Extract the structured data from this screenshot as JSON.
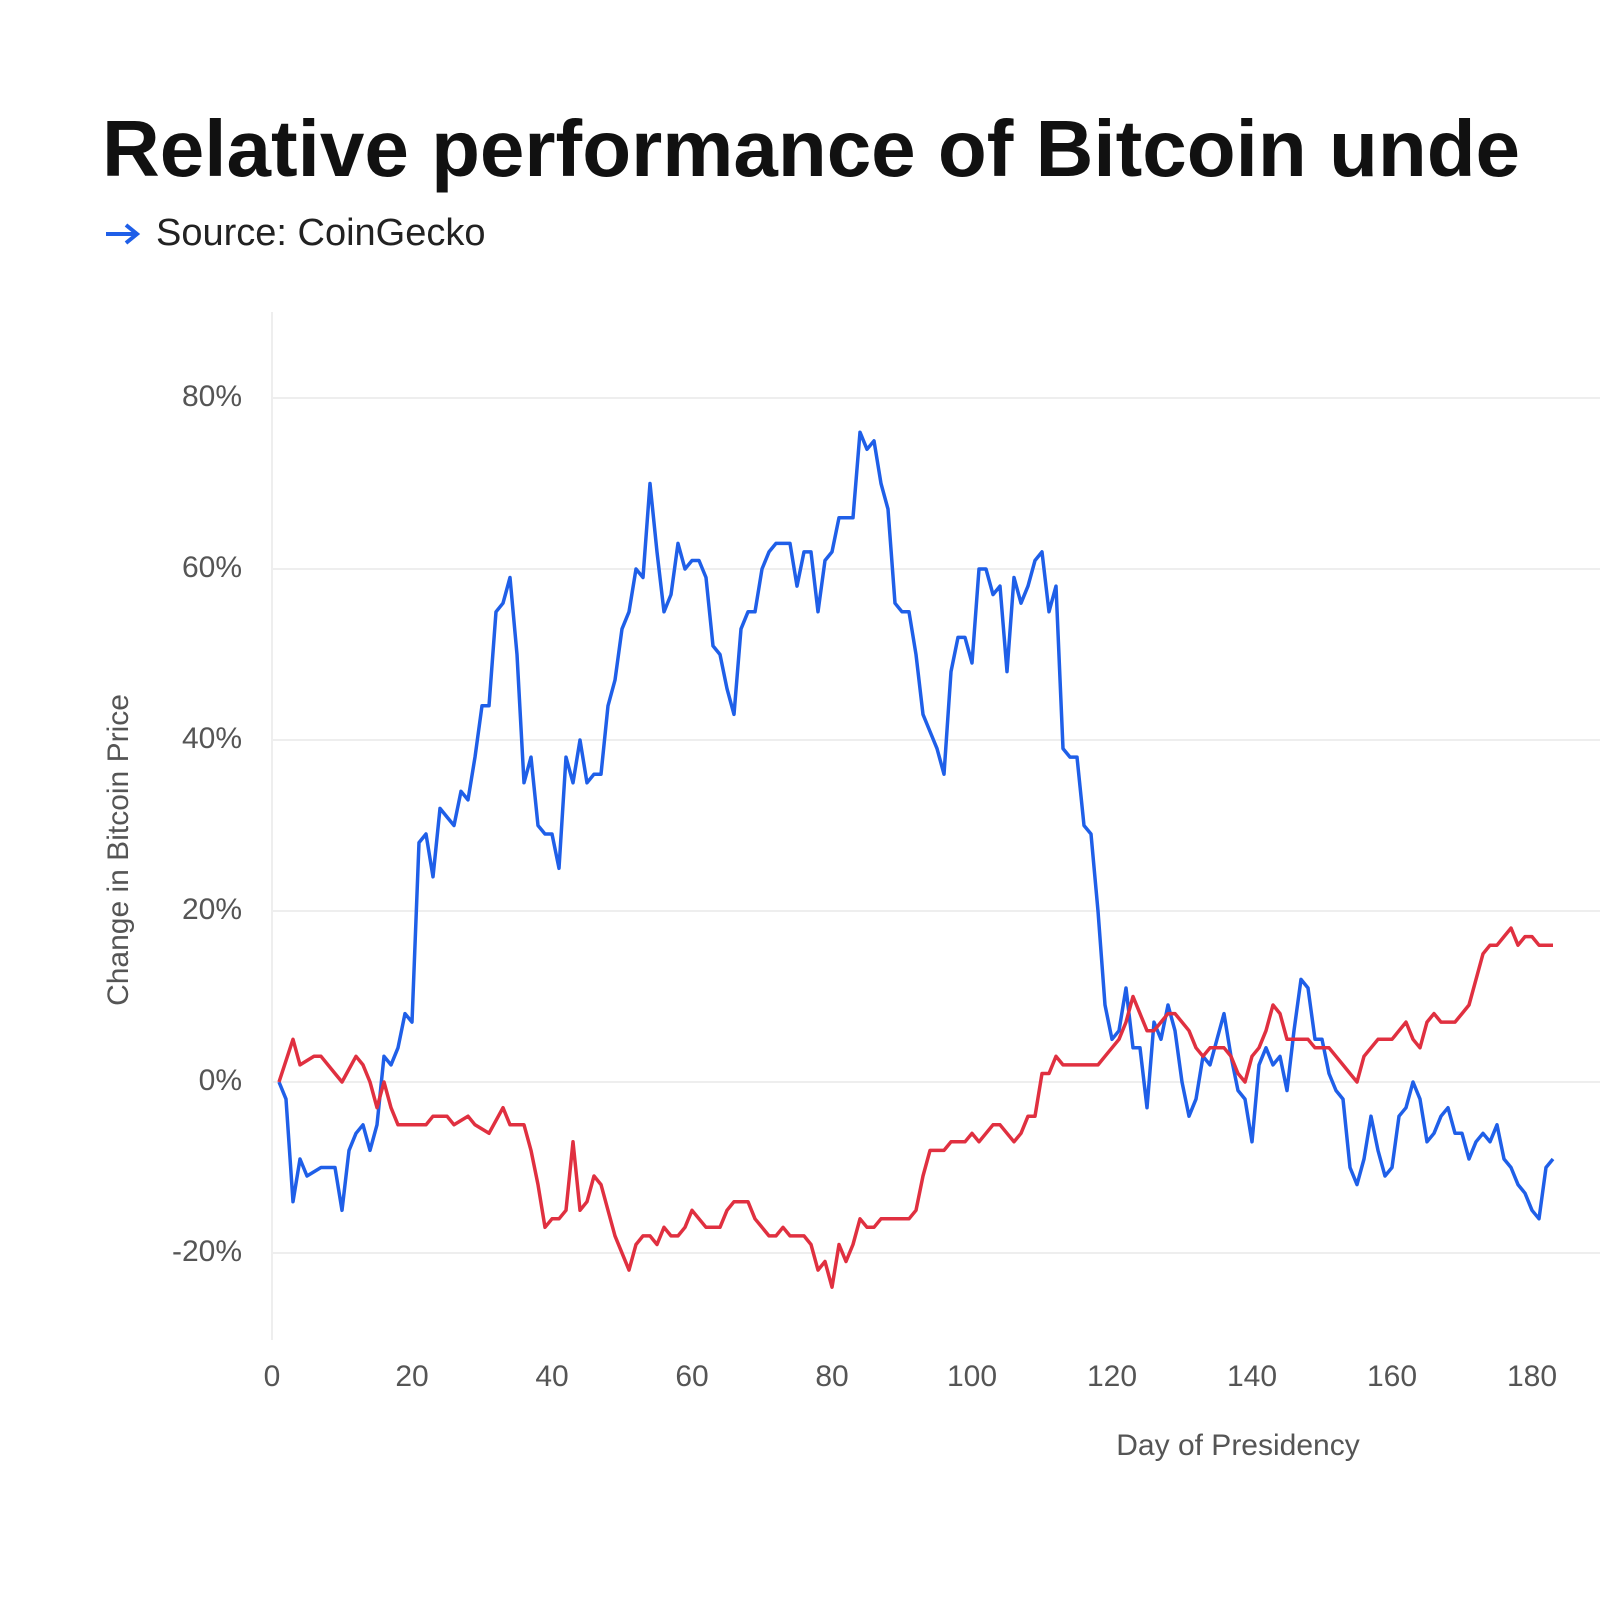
{
  "chart_data": {
    "type": "line",
    "title": "Relative performance of Bitcoin unde",
    "subtitle": "Source: CoinGecko",
    "x_label": "Day of Presidency",
    "y_label": "Change in Bitcoin Price",
    "xlim": [
      0,
      189
    ],
    "ylim": [
      -30,
      90
    ],
    "xticks": [
      0,
      20,
      40,
      60,
      80,
      100,
      120,
      140,
      160,
      180
    ],
    "yticks": [
      {
        "value": -20,
        "label": "-20%"
      },
      {
        "value": 0,
        "label": "0%"
      },
      {
        "value": 20,
        "label": "20%"
      },
      {
        "value": 40,
        "label": "40%"
      },
      {
        "value": 60,
        "label": "60%"
      },
      {
        "value": 80,
        "label": "80%"
      }
    ],
    "grid": true,
    "series": [
      {
        "color": "#1f5fe8",
        "x": [
          1,
          2,
          3,
          4,
          5,
          7,
          9,
          10,
          11,
          12,
          13,
          14,
          15,
          16,
          17,
          18,
          19,
          20,
          21,
          22,
          23,
          24,
          25,
          26,
          27,
          28,
          29,
          30,
          31,
          32,
          33,
          34,
          35,
          36,
          37,
          38,
          39,
          40,
          41,
          42,
          43,
          44,
          45,
          46,
          47,
          48,
          49,
          50,
          51,
          52,
          53,
          54,
          55,
          56,
          57,
          58,
          59,
          60,
          61,
          62,
          63,
          64,
          65,
          66,
          67,
          68,
          69,
          70,
          71,
          72,
          73,
          74,
          75,
          76,
          77,
          78,
          79,
          80,
          81,
          82,
          83,
          84,
          85,
          86,
          87,
          88,
          89,
          90,
          91,
          92,
          93,
          94,
          95,
          96,
          97,
          98,
          99,
          100,
          101,
          102,
          103,
          104,
          105,
          106,
          107,
          108,
          109,
          110,
          111,
          112,
          113,
          114,
          115,
          116,
          117,
          118,
          119,
          120,
          121,
          122,
          123,
          124,
          125,
          126,
          127,
          128,
          129,
          130,
          131,
          132,
          133,
          134,
          135,
          136,
          137,
          138,
          139,
          140,
          141,
          142,
          143,
          144,
          145,
          146,
          147,
          148,
          149,
          150,
          151,
          152,
          153,
          154,
          155,
          156,
          157,
          158,
          159,
          160,
          161,
          162,
          163,
          164,
          165,
          166,
          167,
          168,
          169,
          170,
          171,
          172,
          173,
          174,
          175,
          176,
          177,
          178,
          179,
          180,
          181,
          182,
          183
        ],
        "values": [
          0,
          -2,
          -14,
          -9,
          -11,
          -10,
          -10,
          -15,
          -8,
          -6,
          -5,
          -8,
          -5,
          3,
          2,
          4,
          8,
          7,
          28,
          29,
          24,
          32,
          31,
          30,
          34,
          33,
          38,
          44,
          44,
          55,
          56,
          59,
          50,
          35,
          38,
          30,
          29,
          29,
          25,
          38,
          35,
          40,
          35,
          36,
          36,
          44,
          47,
          53,
          55,
          60,
          59,
          70,
          62,
          55,
          57,
          63,
          60,
          61,
          61,
          59,
          51,
          50,
          46,
          43,
          53,
          55,
          55,
          60,
          62,
          63,
          63,
          63,
          58,
          62,
          62,
          55,
          61,
          62,
          66,
          66,
          66,
          76,
          74,
          75,
          70,
          67,
          56,
          55,
          55,
          50,
          43,
          41,
          39,
          36,
          48,
          52,
          52,
          49,
          60,
          60,
          57,
          58,
          48,
          59,
          56,
          58,
          61,
          62,
          55,
          58,
          39,
          38,
          38,
          30,
          29,
          20,
          9,
          5,
          6,
          11,
          4,
          4,
          -3,
          7,
          5,
          9,
          6,
          0,
          -4,
          -2,
          3,
          2,
          5,
          8,
          3,
          -1,
          -2,
          -7,
          2,
          4,
          2,
          3,
          -1,
          6,
          12,
          11,
          5,
          5,
          1,
          -1,
          -2,
          -10,
          -12,
          -9,
          -4,
          -8,
          -11,
          -10,
          -4,
          -3,
          0,
          -2,
          -7,
          -6,
          -4,
          -3,
          -6,
          -6,
          -9,
          -7,
          -6,
          -7,
          -5,
          -9,
          -10,
          -12,
          -13,
          -15,
          -16,
          -10,
          -9
        ]
      },
      {
        "color": "#e03040",
        "x": [
          1,
          3,
          4,
          6,
          7,
          9,
          10,
          12,
          13,
          14,
          15,
          16,
          17,
          18,
          20,
          22,
          23,
          24,
          25,
          26,
          28,
          29,
          31,
          33,
          34,
          36,
          37,
          38,
          39,
          40,
          41,
          42,
          43,
          44,
          45,
          46,
          47,
          48,
          49,
          51,
          52,
          53,
          54,
          55,
          56,
          57,
          58,
          59,
          60,
          61,
          62,
          63,
          64,
          65,
          66,
          67,
          68,
          69,
          70,
          71,
          72,
          73,
          74,
          75,
          76,
          77,
          78,
          79,
          80,
          81,
          82,
          83,
          84,
          85,
          86,
          87,
          88,
          89,
          90,
          91,
          92,
          93,
          94,
          95,
          96,
          97,
          98,
          99,
          100,
          101,
          102,
          103,
          104,
          105,
          106,
          107,
          108,
          109,
          110,
          111,
          112,
          113,
          114,
          115,
          116,
          117,
          118,
          119,
          120,
          121,
          122,
          123,
          124,
          125,
          126,
          127,
          128,
          129,
          130,
          131,
          132,
          133,
          134,
          135,
          136,
          137,
          138,
          139,
          140,
          141,
          142,
          143,
          144,
          145,
          146,
          147,
          148,
          149,
          150,
          151,
          152,
          153,
          154,
          155,
          156,
          157,
          158,
          159,
          160,
          161,
          162,
          163,
          164,
          165,
          166,
          167,
          168,
          169,
          170,
          171,
          172,
          173,
          174,
          175,
          176,
          177,
          178,
          179,
          180,
          181,
          182,
          183
        ],
        "values": [
          0,
          5,
          2,
          3,
          3,
          1,
          0,
          3,
          2,
          0,
          -3,
          0,
          -3,
          -5,
          -5,
          -5,
          -4,
          -4,
          -4,
          -5,
          -4,
          -5,
          -6,
          -3,
          -5,
          -5,
          -8,
          -12,
          -17,
          -16,
          -16,
          -15,
          -7,
          -15,
          -14,
          -11,
          -12,
          -15,
          -18,
          -22,
          -19,
          -18,
          -18,
          -19,
          -17,
          -18,
          -18,
          -17,
          -15,
          -16,
          -17,
          -17,
          -17,
          -15,
          -14,
          -14,
          -14,
          -16,
          -17,
          -18,
          -18,
          -17,
          -18,
          -18,
          -18,
          -19,
          -22,
          -21,
          -24,
          -19,
          -21,
          -19,
          -16,
          -17,
          -17,
          -16,
          -16,
          -16,
          -16,
          -16,
          -15,
          -11,
          -8,
          -8,
          -8,
          -7,
          -7,
          -7,
          -6,
          -7,
          -6,
          -5,
          -5,
          -6,
          -7,
          -6,
          -4,
          -4,
          1,
          1,
          3,
          2,
          2,
          2,
          2,
          2,
          2,
          3,
          4,
          5,
          7,
          10,
          8,
          6,
          6,
          7,
          8,
          8,
          7,
          6,
          4,
          3,
          4,
          4,
          4,
          3,
          1,
          0,
          3,
          4,
          6,
          9,
          8,
          5,
          5,
          5,
          5,
          4,
          4,
          4,
          3,
          2,
          1,
          0,
          3,
          4,
          5,
          5,
          5,
          6,
          7,
          5,
          4,
          7,
          8,
          7,
          7,
          7,
          8,
          9,
          12,
          15,
          16,
          16,
          17,
          18,
          16,
          17,
          17,
          16,
          16,
          16
        ]
      }
    ]
  }
}
